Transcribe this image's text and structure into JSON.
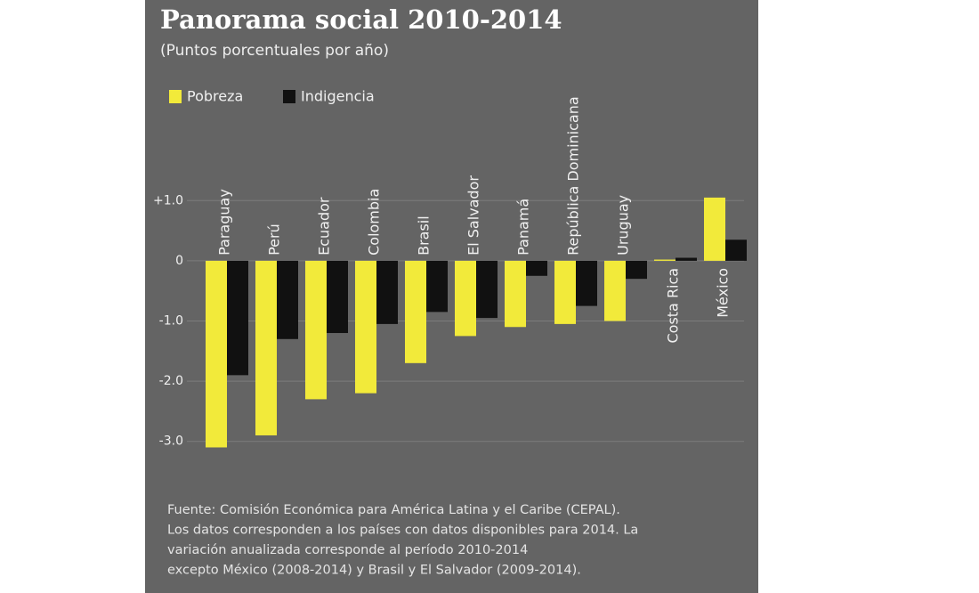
{
  "chart_data": {
    "type": "bar",
    "title": "Panorama social 2010-2014",
    "subtitle": "(Puntos porcentuales por año)",
    "categories": [
      "Paraguay",
      "Perú",
      "Ecuador",
      "Colombia",
      "Brasil",
      "El Salvador",
      "Panamá",
      "República Dominicana",
      "Uruguay",
      "Costa Rica",
      "México"
    ],
    "series": [
      {
        "name": "Pobreza",
        "color": "#f2ea3a",
        "values": [
          -3.1,
          -2.9,
          -2.3,
          -2.2,
          -1.7,
          -1.25,
          -1.1,
          -1.05,
          -1.0,
          0.02,
          1.05
        ]
      },
      {
        "name": "Indigencia",
        "color": "#111111",
        "values": [
          -1.9,
          -1.3,
          -1.2,
          -1.05,
          -0.85,
          -0.95,
          -0.25,
          -0.75,
          -0.3,
          0.05,
          0.35
        ]
      }
    ],
    "ylim": [
      -3.3,
      1.3
    ],
    "yticks": [
      {
        "value": 1,
        "label": "+1.0"
      },
      0,
      {
        "value": -1,
        "label": "-1.0"
      },
      {
        "value": -2,
        "label": "-2.0"
      },
      {
        "value": -3,
        "label": "-3.0"
      }
    ],
    "grid": true,
    "footnote": [
      "Fuente: Comisión Económica para América Latina y el Caribe (CEPAL).",
      "Los datos corresponden a los países con datos disponibles para 2014. La",
      "variación anualizada corresponde al período 2010-2014",
      "excepto México (2008-2014) y Brasil y El Salvador (2009-2014)."
    ]
  }
}
